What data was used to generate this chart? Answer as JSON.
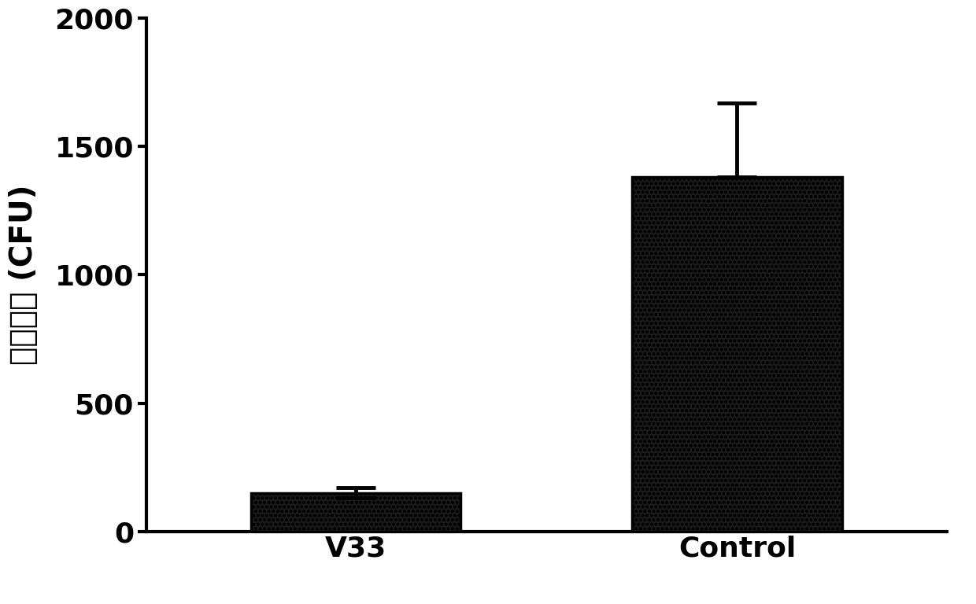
{
  "categories": [
    "V33",
    "Control"
  ],
  "values": [
    150,
    1380
  ],
  "errors_upper": [
    20,
    290
  ],
  "errors_lower": [
    20,
    0
  ],
  "ylim": [
    0,
    2000
  ],
  "yticks": [
    0,
    500,
    1000,
    1500,
    2000
  ],
  "ylabel": "菌落计数 (CFU)",
  "bar_width": 0.55,
  "background_color": "#ffffff",
  "tick_fontsize": 26,
  "label_fontsize": 28,
  "error_capsize": 18,
  "error_linewidth": 3.5,
  "spine_linewidth": 3.0,
  "xlim": [
    -0.55,
    1.55
  ]
}
